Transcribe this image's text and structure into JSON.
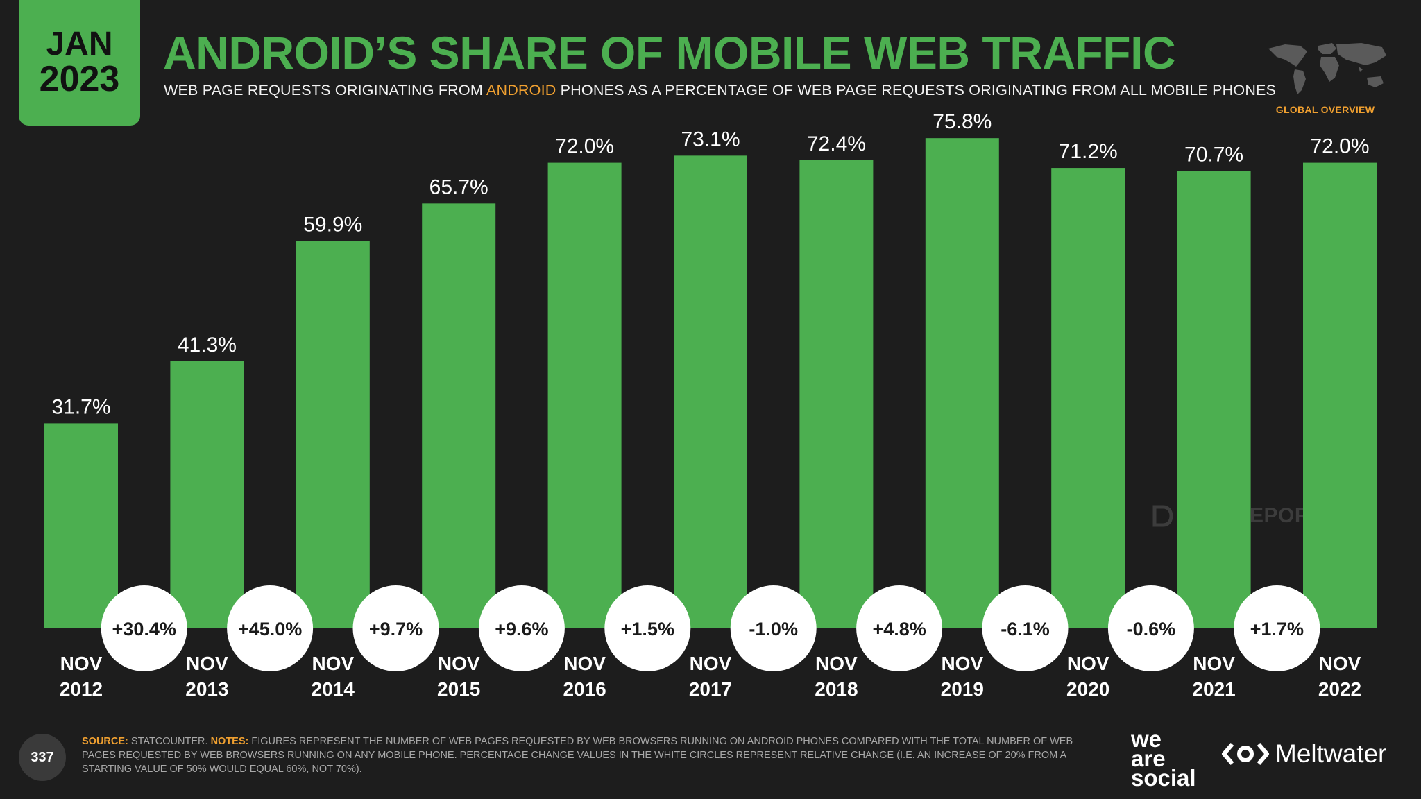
{
  "header": {
    "date_month": "JAN",
    "date_year": "2023",
    "title": "ANDROID’S SHARE OF MOBILE WEB TRAFFIC",
    "subtitle_before": "WEB PAGE REQUESTS ORIGINATING FROM ",
    "subtitle_highlight": "ANDROID",
    "subtitle_after": " PHONES AS A PERCENTAGE OF WEB PAGE REQUESTS ORIGINATING FROM ALL MOBILE PHONES",
    "region_label": "GLOBAL OVERVIEW"
  },
  "chart_data": {
    "type": "bar",
    "title": "ANDROID’S SHARE OF MOBILE WEB TRAFFIC",
    "categories": [
      [
        "NOV",
        "2012"
      ],
      [
        "NOV",
        "2013"
      ],
      [
        "NOV",
        "2014"
      ],
      [
        "NOV",
        "2015"
      ],
      [
        "NOV",
        "2016"
      ],
      [
        "NOV",
        "2017"
      ],
      [
        "NOV",
        "2018"
      ],
      [
        "NOV",
        "2019"
      ],
      [
        "NOV",
        "2020"
      ],
      [
        "NOV",
        "2021"
      ],
      [
        "NOV",
        "2022"
      ]
    ],
    "values": [
      31.7,
      41.3,
      59.9,
      65.7,
      72.0,
      73.1,
      72.4,
      75.8,
      71.2,
      70.7,
      72.0
    ],
    "value_labels": [
      "31.7%",
      "41.3%",
      "59.9%",
      "65.7%",
      "72.0%",
      "73.1%",
      "72.4%",
      "75.8%",
      "71.2%",
      "70.7%",
      "72.0%"
    ],
    "changes": [
      "+30.4%",
      "+45.0%",
      "+9.7%",
      "+9.6%",
      "+1.5%",
      "-1.0%",
      "+4.8%",
      "-6.1%",
      "-0.6%",
      "+1.7%"
    ],
    "ylim": [
      0,
      80
    ],
    "xlabel": "",
    "ylabel": "",
    "grid": false,
    "bar_color": "#4caf50"
  },
  "watermark": "DATAREPORTAL",
  "footer": {
    "page_number": "337",
    "source_label": "SOURCE:",
    "source_text": " STATCOUNTER. ",
    "notes_label": "NOTES:",
    "notes_text": " FIGURES REPRESENT THE NUMBER OF WEB PAGES REQUESTED BY WEB BROWSERS RUNNING ON ANDROID PHONES COMPARED WITH THE TOTAL NUMBER OF WEB PAGES REQUESTED BY WEB BROWSERS RUNNING ON ANY MOBILE PHONE. PERCENTAGE CHANGE VALUES IN THE WHITE CIRCLES REPRESENT RELATIVE CHANGE (I.E. AN INCREASE OF 20% FROM A STARTING VALUE OF 50% WOULD EQUAL 60%, NOT 70%).",
    "brand_line1": "we",
    "brand_line2": "are",
    "brand_line3": "social",
    "partner": "Meltwater"
  },
  "colors": {
    "accent": "#4caf50",
    "highlight": "#f0a030",
    "background": "#1d1d1d"
  }
}
